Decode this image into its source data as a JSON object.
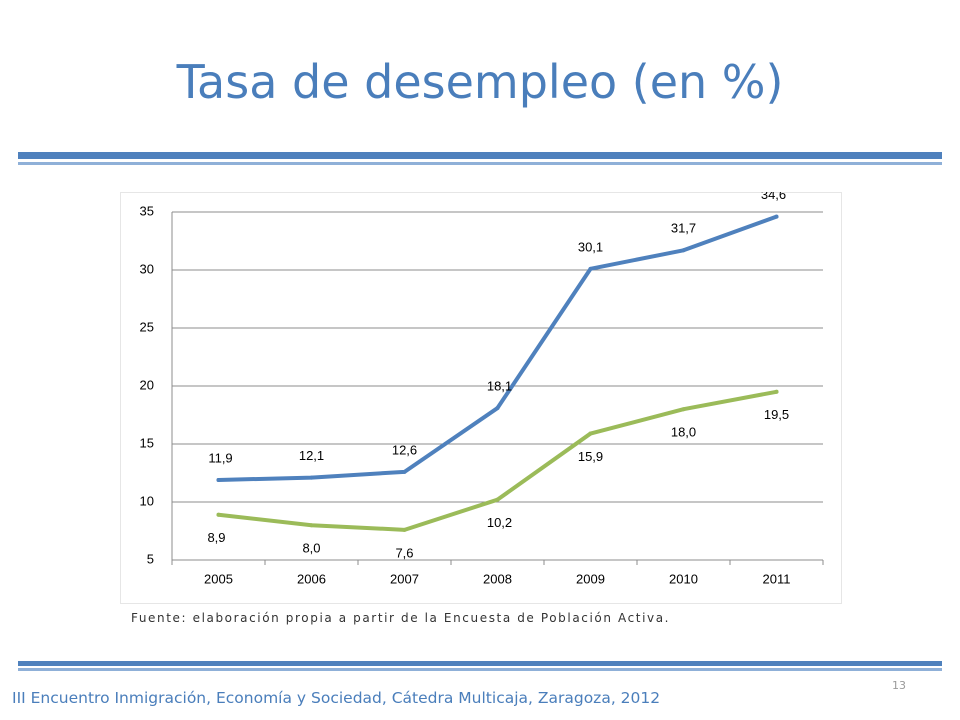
{
  "slide": {
    "title": "Tasa de desempleo (en %)",
    "source": "Fuente: elaboración propia a partir de la Encuesta de Población Activa.",
    "footer": "III Encuentro Inmigración, Economía y Sociedad, Cátedra Multicaja, Zaragoza, 2012",
    "page_number": "13"
  },
  "colors": {
    "title": "#4A7EBB",
    "rule": "#4F81BD",
    "series_blue": "#4F81BD",
    "series_green": "#9BBB59",
    "grid": "#8C8C8C"
  },
  "chart_data": {
    "type": "line",
    "title": "",
    "xlabel": "",
    "ylabel": "",
    "categories": [
      "2005",
      "2006",
      "2007",
      "2008",
      "2009",
      "2010",
      "2011"
    ],
    "ylim": [
      5,
      35
    ],
    "yticks": [
      5,
      10,
      15,
      20,
      25,
      30,
      35
    ],
    "grid": true,
    "legend": "none",
    "series": [
      {
        "color": "#4F81BD",
        "values": [
          11.9,
          12.1,
          12.6,
          18.1,
          30.1,
          31.7,
          34.6
        ],
        "labels": [
          "11,9",
          "12,1",
          "12,6",
          "18,1",
          "30,1",
          "31,7",
          "34,6"
        ]
      },
      {
        "color": "#9BBB59",
        "values": [
          8.9,
          8.0,
          7.6,
          10.2,
          15.9,
          18.0,
          19.5
        ],
        "labels": [
          "8,9",
          "8,0",
          "7,6",
          "10,2",
          "15,9",
          "18,0",
          "19,5"
        ]
      }
    ]
  }
}
